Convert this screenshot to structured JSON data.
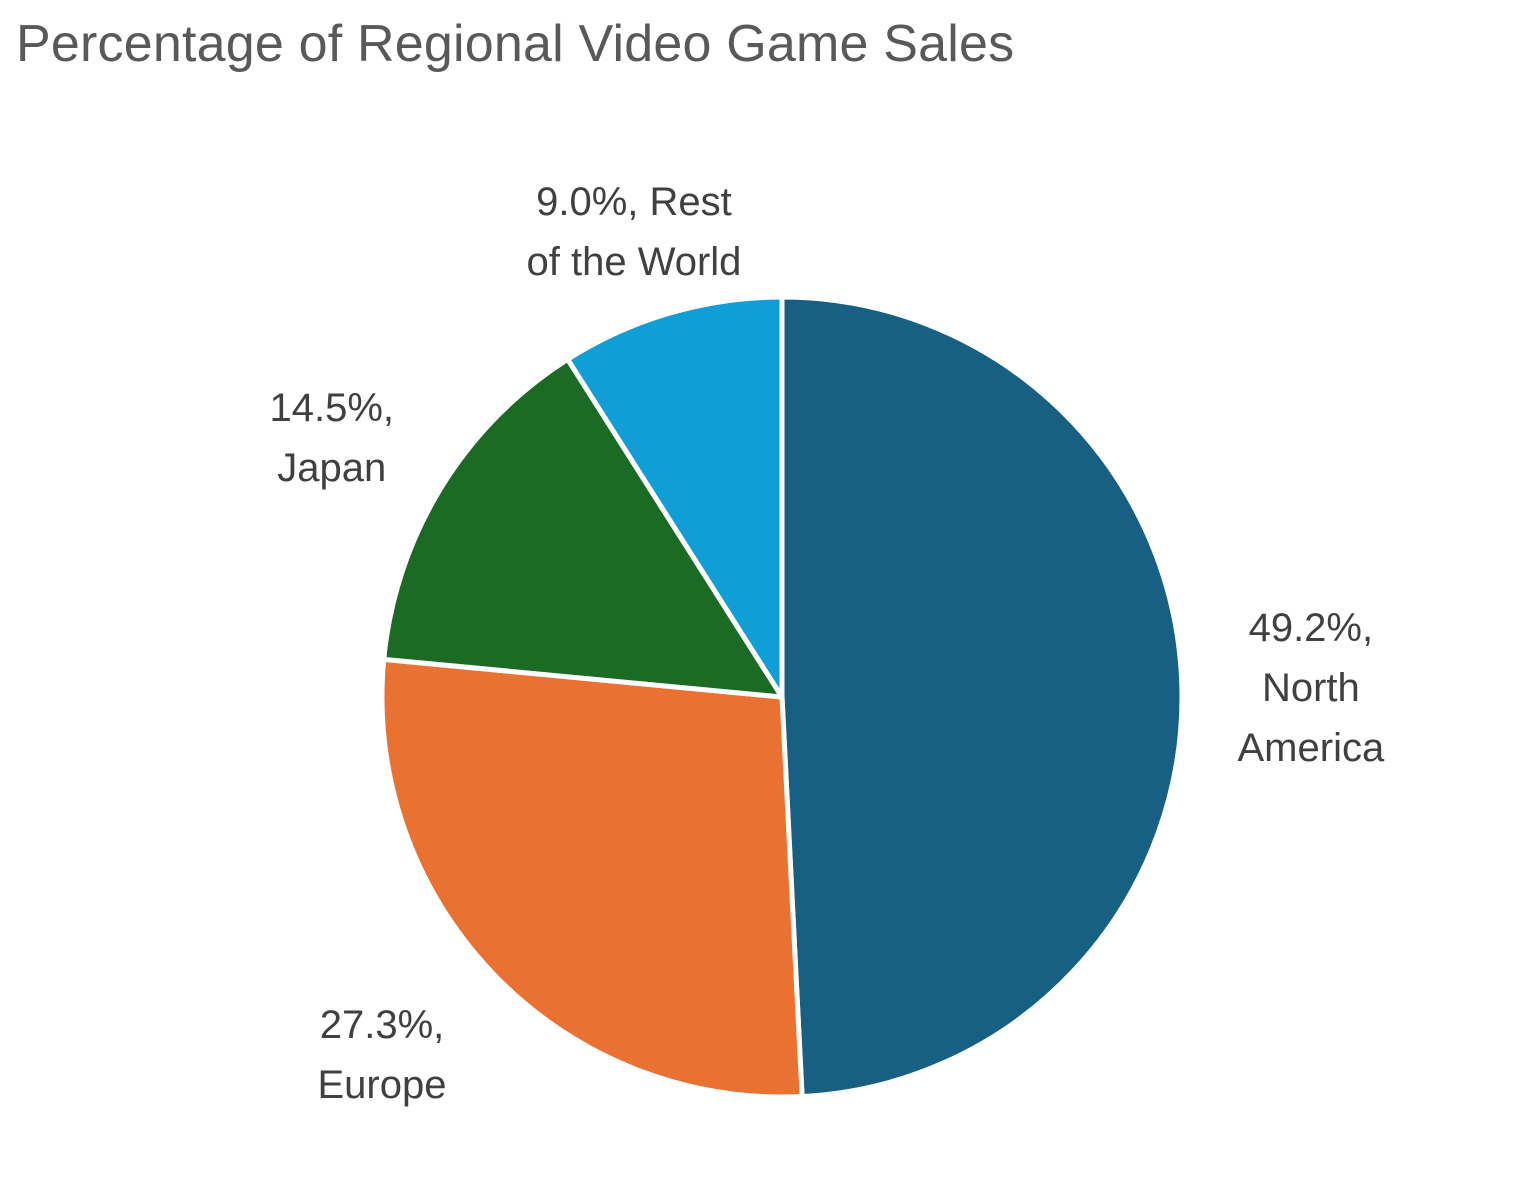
{
  "chart_data": {
    "type": "pie",
    "title": "Percentage of Regional Video Game Sales",
    "slices": [
      {
        "name": "North America",
        "value": 49.2,
        "label_value": "49.2%,",
        "label_lines": [
          "North",
          "America"
        ],
        "color": "#186083"
      },
      {
        "name": "Europe",
        "value": 27.3,
        "label_value": "27.3%,",
        "label_lines": [
          "Europe"
        ],
        "color": "#E97233"
      },
      {
        "name": "Japan",
        "value": 14.5,
        "label_value": "14.5%,",
        "label_lines": [
          "Japan"
        ],
        "color": "#1C6B25"
      },
      {
        "name": "Rest of the World",
        "value": 9.0,
        "label_value": "9.0%, Rest",
        "label_lines": [
          "of the World"
        ],
        "color": "#0F9ED5"
      }
    ],
    "start_angle_deg": 0,
    "direction": "clockwise",
    "legend": "none"
  }
}
